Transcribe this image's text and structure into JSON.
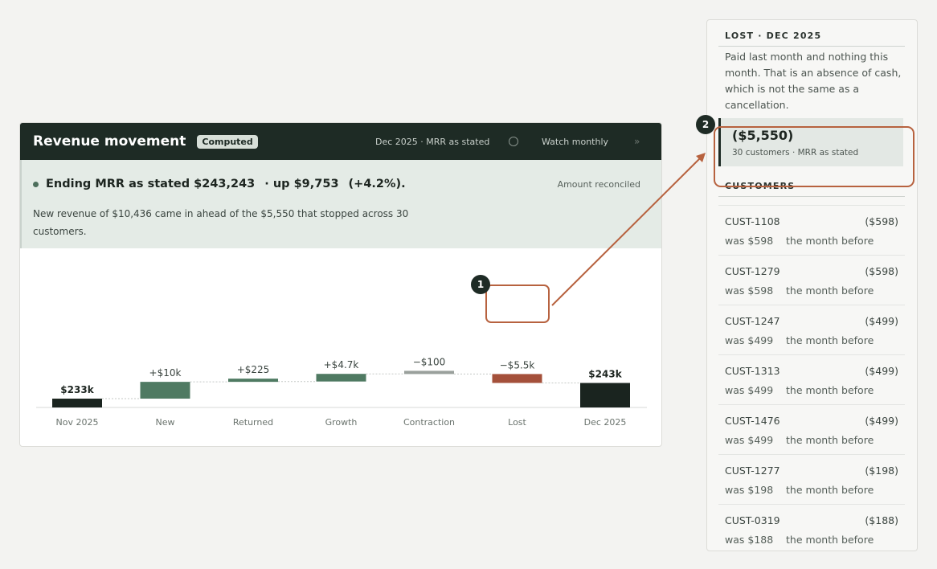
{
  "header": {
    "title": "Revenue movement",
    "badge": "Computed",
    "period": "Dec 2025 · MRR as stated",
    "watch_label": "Watch monthly",
    "arrow": "»"
  },
  "summary": {
    "headline": "Ending MRR as stated $243,243",
    "delta": "· up $9,753",
    "pct": "(+4.2%).",
    "reconciled": "Amount reconciled",
    "description": "New revenue of $10,436 came in ahead of the $5,550 that stopped across 30 customers."
  },
  "chart_data": {
    "type": "waterfall",
    "categories": [
      "Nov 2025",
      "New",
      "Returned",
      "Growth",
      "Contraction",
      "Lost",
      "Dec 2025"
    ],
    "values": [
      233490,
      10436,
      225,
      4742,
      -100,
      -5550,
      243243
    ],
    "labels": [
      "$233k",
      "+$10k",
      "+$225",
      "+$4.7k",
      "−$100",
      "−$5.5k",
      "$243k"
    ],
    "kinds": [
      "total",
      "increase",
      "increase",
      "increase",
      "decrease",
      "lost",
      "total"
    ],
    "colors": {
      "total": "#1a241f",
      "increase": "#4f7a62",
      "decrease": "#9aa09c",
      "lost": "#a4503a"
    }
  },
  "annotations": {
    "marker1": "1",
    "marker2": "2",
    "accent": "#b7623f"
  },
  "panel": {
    "title": "LOST · DEC 2025",
    "description": "Paid last month and nothing this month. That is an absence of cash, which is not the same as a cancellation.",
    "lost_amount": "($5,550)",
    "lost_sub": "30 customers · MRR as stated",
    "customers_label": "CUSTOMERS",
    "customers": [
      {
        "id": "CUST-1108",
        "amount": "($598)",
        "was": "was $598",
        "before": "the month before"
      },
      {
        "id": "CUST-1279",
        "amount": "($598)",
        "was": "was $598",
        "before": "the month before"
      },
      {
        "id": "CUST-1247",
        "amount": "($499)",
        "was": "was $499",
        "before": "the month before"
      },
      {
        "id": "CUST-1313",
        "amount": "($499)",
        "was": "was $499",
        "before": "the month before"
      },
      {
        "id": "CUST-1476",
        "amount": "($499)",
        "was": "was $499",
        "before": "the month before"
      },
      {
        "id": "CUST-1277",
        "amount": "($198)",
        "was": "was $198",
        "before": "the month before"
      },
      {
        "id": "CUST-0319",
        "amount": "($188)",
        "was": "was $188",
        "before": "the month before"
      }
    ]
  }
}
